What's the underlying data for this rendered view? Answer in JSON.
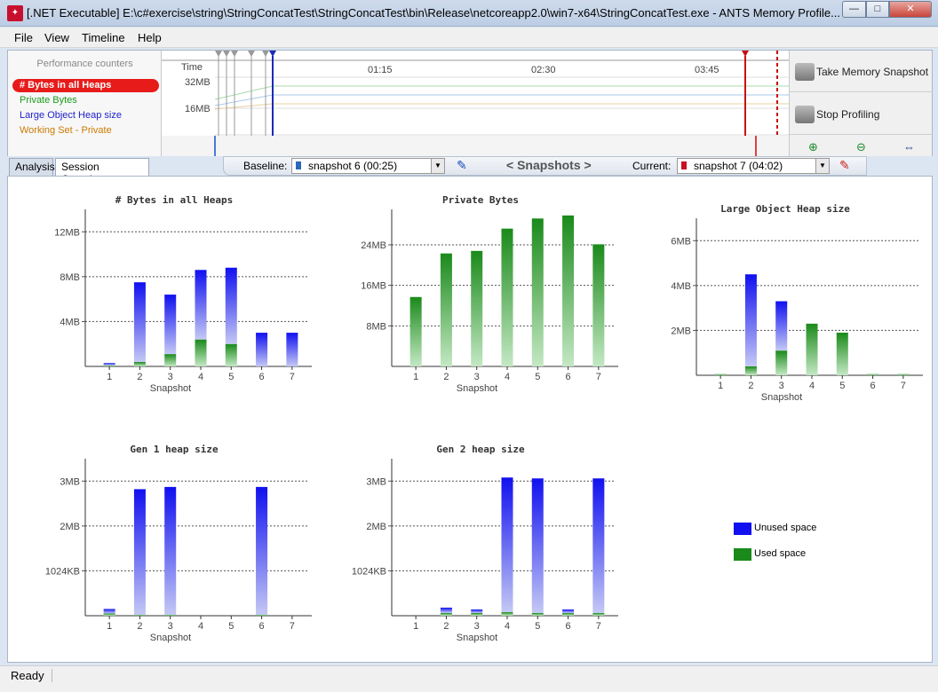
{
  "window": {
    "title": "[.NET Executable] E:\\c#exercise\\string\\StringConcatTest\\StringConcatTest\\bin\\Release\\netcoreapp2.0\\win7-x64\\StringConcatTest.exe - ANTS Memory Profile...",
    "icon": "red-gecko-app-icon",
    "min": "—",
    "max": "□",
    "close": "✕"
  },
  "menu": [
    "File",
    "View",
    "Timeline",
    "Help"
  ],
  "perf": {
    "title": "Performance counters",
    "counters": [
      {
        "label": "# Bytes in all Heaps",
        "color": "#ffffff"
      },
      {
        "label": "Private Bytes",
        "color": "#1a9a1a"
      },
      {
        "label": "Large Object Heap size",
        "color": "#2222cc"
      },
      {
        "label": "Working Set - Private",
        "color": "#cc7a00"
      }
    ]
  },
  "timeline": {
    "time_label": "Time",
    "times": [
      "01:15",
      "02:30",
      "03:45"
    ],
    "y_labels": [
      "32MB",
      "16MB"
    ]
  },
  "actions": {
    "take_snapshot": "Take Memory Snapshot",
    "stop_profiling": "Stop Profiling",
    "zoom_in": "⊕",
    "zoom_out": "⊖",
    "fit": "⇔"
  },
  "tabs": {
    "analysis": "Analysis",
    "session": "Session Overview"
  },
  "snapbar": {
    "baseline_label": "Baseline:",
    "baseline_value": "snapshot 6 (00:25)",
    "center": "< Snapshots >",
    "current_label": "Current:",
    "current_value": "snapshot 7 (04:02)"
  },
  "legend": {
    "unused": "Unused space",
    "used": "Used space"
  },
  "colors": {
    "unused": "#1010f0",
    "used": "#1a8a1a"
  },
  "status": "Ready",
  "chart_data": [
    {
      "type": "bar",
      "title": "# Bytes in all Heaps",
      "xlabel": "Snapshot",
      "categories": [
        "1",
        "2",
        "3",
        "4",
        "5",
        "6",
        "7"
      ],
      "ylim": [
        0,
        14
      ],
      "y_ticks": [
        4,
        8,
        12
      ],
      "y_tick_labels": [
        "4MB",
        "8MB",
        "12MB"
      ],
      "series": [
        {
          "name": "Unused space",
          "values": [
            0.2,
            7.1,
            5.3,
            6.2,
            6.8,
            3.0,
            3.0
          ]
        },
        {
          "name": "Used space",
          "values": [
            0.1,
            0.4,
            1.1,
            2.4,
            2.0,
            0.0,
            0.0
          ]
        }
      ]
    },
    {
      "type": "bar",
      "title": "Private Bytes",
      "xlabel": "Snapshot",
      "categories": [
        "1",
        "2",
        "3",
        "4",
        "5",
        "6",
        "7"
      ],
      "ylim": [
        0,
        31
      ],
      "y_ticks": [
        8,
        16,
        24
      ],
      "y_tick_labels": [
        "8MB",
        "16MB",
        "24MB"
      ],
      "series": [
        {
          "name": "Used space",
          "values": [
            13.7,
            22.3,
            22.8,
            27.2,
            29.2,
            29.8,
            24.1
          ]
        }
      ]
    },
    {
      "type": "bar",
      "title": "Large Object Heap size",
      "xlabel": "Snapshot",
      "categories": [
        "1",
        "2",
        "3",
        "4",
        "5",
        "6",
        "7"
      ],
      "ylim": [
        0,
        7
      ],
      "y_ticks": [
        2,
        4,
        6
      ],
      "y_tick_labels": [
        "2MB",
        "4MB",
        "6MB"
      ],
      "series": [
        {
          "name": "Unused space",
          "values": [
            0,
            4.1,
            2.2,
            0,
            0,
            0,
            0
          ]
        },
        {
          "name": "Used space",
          "values": [
            0.05,
            0.4,
            1.1,
            2.3,
            1.9,
            0.05,
            0.05
          ]
        }
      ]
    },
    {
      "type": "bar",
      "title": "Gen 1 heap size",
      "xlabel": "Snapshot",
      "categories": [
        "1",
        "2",
        "3",
        "4",
        "5",
        "6",
        "7"
      ],
      "ylim": [
        0,
        3.5
      ],
      "y_ticks": [
        1,
        2,
        3
      ],
      "y_tick_labels": [
        "1024KB",
        "2MB",
        "3MB"
      ],
      "series": [
        {
          "name": "Unused space",
          "values": [
            0.1,
            2.8,
            2.85,
            0,
            0,
            2.85,
            0
          ]
        },
        {
          "name": "Used space",
          "values": [
            0.05,
            0.02,
            0.02,
            0,
            0,
            0.02,
            0
          ]
        }
      ]
    },
    {
      "type": "bar",
      "title": "Gen 2 heap size",
      "xlabel": "Snapshot",
      "categories": [
        "1",
        "2",
        "3",
        "4",
        "5",
        "6",
        "7"
      ],
      "ylim": [
        0,
        3.5
      ],
      "y_ticks": [
        1,
        2,
        3
      ],
      "y_tick_labels": [
        "1024KB",
        "2MB",
        "3MB"
      ],
      "series": [
        {
          "name": "Unused space",
          "values": [
            0,
            0.12,
            0.08,
            3.0,
            3.0,
            0.08,
            3.0
          ]
        },
        {
          "name": "Used space",
          "values": [
            0,
            0.06,
            0.06,
            0.08,
            0.06,
            0.06,
            0.06
          ]
        }
      ]
    }
  ]
}
